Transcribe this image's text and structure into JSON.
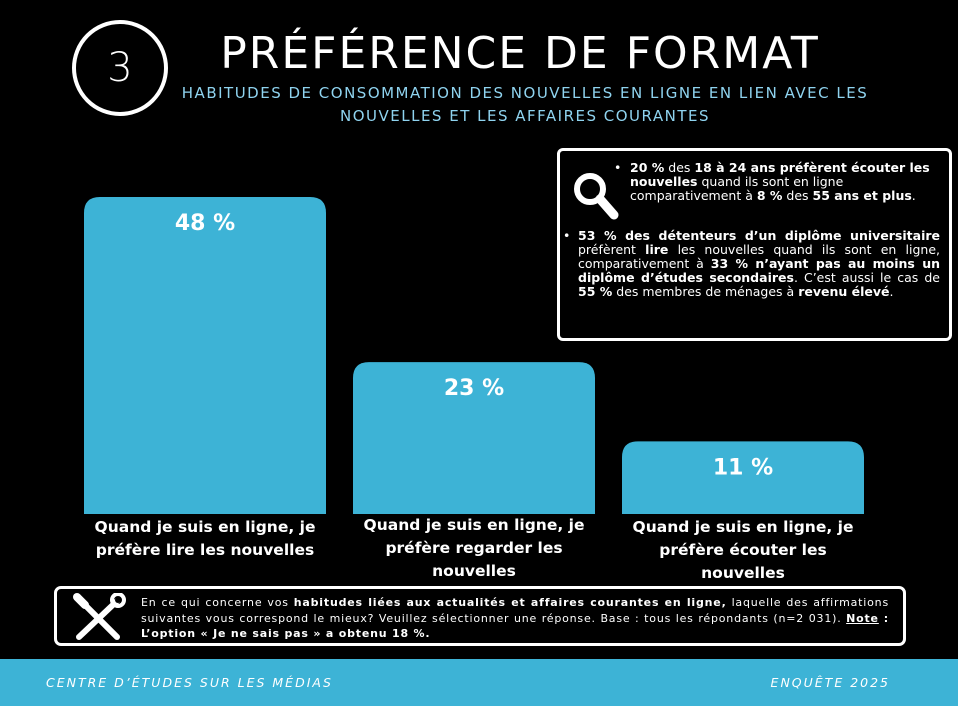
{
  "header": {
    "number": "3",
    "title": "PRÉFÉRENCE DE FORMAT",
    "subtitle": "HABITUDES DE CONSOMMATION DES NOUVELLES EN LIGNE EN LIEN AVEC LES NOUVELLES ET LES AFFAIRES COURANTES"
  },
  "infobox": {
    "b1": {
      "p1": "20 %",
      "t1": " des ",
      "p2": "18 à 24 ans préfèrent écouter les nouvelles",
      "t2": " quand ils sont en ligne comparativement à ",
      "p3": "8 %",
      "t3": " des ",
      "p4": "55 ans et plus",
      "t4": "."
    },
    "b2": {
      "p1": "53 % des détenteurs d’un diplôme universitaire",
      "t1": " préfèrent ",
      "p2": "lire",
      "t2": " les nouvelles quand ils sont en ligne, comparativement à ",
      "p3": "33 % n’ayant pas au moins un diplôme d’études secondaires",
      "t3": ". C’est aussi le cas de ",
      "p4": "55 %",
      "t4": " des membres de ménages à ",
      "p5": "revenu élevé",
      "t5": "."
    }
  },
  "chart_data": {
    "type": "bar",
    "title": "",
    "categories": [
      "Quand je suis en ligne, je préfère lire les nouvelles",
      "Quand je suis en ligne, je préfère regarder les nouvelles",
      "Quand je suis en ligne, je préfère écouter les nouvelles"
    ],
    "values": [
      48,
      23,
      11
    ],
    "value_labels": [
      "48 %",
      "23 %",
      "11 %"
    ],
    "ylim": [
      0,
      48
    ],
    "xlabel": "",
    "ylabel": "",
    "bar_color": "#3db3d6"
  },
  "note": {
    "t1": "En ce qui concerne vos ",
    "b1": "habitudes liées aux actualités et affaires courantes en ligne,",
    "t2": " laquelle des affirmations suivantes vous correspond le mieux? Veuillez sélectionner une réponse. Base : tous les répondants (n=2 031). ",
    "u1": "Note",
    "b2": " : L’option « Je ne sais pas » a obtenu 18 %."
  },
  "footer": {
    "left": "CENTRE D’ÉTUDES SUR LES MÉDIAS",
    "right": "ENQUÊTE 2025"
  },
  "colors": {
    "accent": "#3db3d6",
    "subtitle": "#8fd3ef",
    "background": "#000000"
  }
}
